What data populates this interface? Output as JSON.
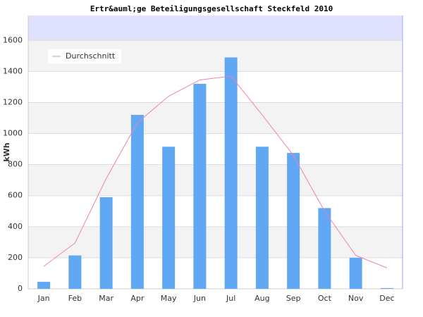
{
  "chart_data": {
    "type": "bar-line",
    "title": "Ertr&auml;ge Beteiligungsgesellschaft Steckfeld 2010",
    "y_label": "kWh",
    "categories": [
      "Jan",
      "Feb",
      "Mar",
      "Apr",
      "May",
      "Jun",
      "Jul",
      "Aug",
      "Sep",
      "Oct",
      "Nov",
      "Dec"
    ],
    "series": [
      {
        "type": "bar",
        "color": "#60a8f4",
        "values": [
          45,
          215,
          590,
          1120,
          915,
          1320,
          1490,
          915,
          875,
          520,
          200,
          5
        ]
      },
      {
        "type": "line",
        "name": "Durchschnitt",
        "color": "#f080b0",
        "values": [
          145,
          295,
          710,
          1070,
          1240,
          1345,
          1370,
          1120,
          860,
          500,
          215,
          135
        ]
      }
    ],
    "ylim": [
      0,
      1760
    ],
    "yticks": [
      0,
      200,
      400,
      600,
      800,
      1000,
      1200,
      1400,
      1600
    ],
    "grid": true,
    "legend": "top-left"
  }
}
